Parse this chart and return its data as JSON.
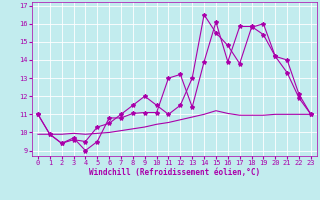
{
  "xlabel": "Windchill (Refroidissement éolien,°C)",
  "xlim": [
    -0.5,
    23.5
  ],
  "ylim": [
    8.7,
    17.2
  ],
  "yticks": [
    9,
    10,
    11,
    12,
    13,
    14,
    15,
    16,
    17
  ],
  "xticks": [
    0,
    1,
    2,
    3,
    4,
    5,
    6,
    7,
    8,
    9,
    10,
    11,
    12,
    13,
    14,
    15,
    16,
    17,
    18,
    19,
    20,
    21,
    22,
    23
  ],
  "background_color": "#c2ecee",
  "grid_color": "#ffffff",
  "line_color": "#aa00aa",
  "line1_x": [
    0,
    1,
    2,
    3,
    4,
    5,
    6,
    7,
    8,
    9,
    10,
    11,
    12,
    13,
    14,
    15,
    16,
    17,
    18,
    19,
    20,
    21,
    22,
    23
  ],
  "line1_y": [
    11.0,
    9.9,
    9.4,
    9.7,
    9.0,
    9.5,
    10.8,
    10.8,
    11.05,
    11.1,
    11.1,
    13.0,
    13.2,
    11.4,
    13.9,
    16.1,
    13.9,
    15.85,
    15.85,
    15.4,
    14.2,
    13.3,
    11.9,
    11.0
  ],
  "line2_x": [
    0,
    1,
    2,
    3,
    4,
    5,
    6,
    7,
    8,
    9,
    10,
    11,
    12,
    13,
    14,
    15,
    16,
    17,
    18,
    19,
    20,
    21,
    22,
    23
  ],
  "line2_y": [
    11.0,
    9.9,
    9.4,
    9.6,
    9.5,
    10.3,
    10.5,
    11.0,
    11.5,
    12.0,
    11.5,
    11.0,
    11.5,
    13.0,
    16.5,
    15.5,
    14.8,
    13.8,
    15.8,
    16.0,
    14.2,
    14.0,
    12.1,
    11.0
  ],
  "line3_x": [
    0,
    1,
    2,
    3,
    4,
    5,
    6,
    7,
    8,
    9,
    10,
    11,
    12,
    13,
    14,
    15,
    16,
    17,
    18,
    19,
    20,
    21,
    22,
    23
  ],
  "line3_y": [
    9.9,
    9.9,
    9.9,
    9.95,
    9.9,
    9.95,
    10.0,
    10.1,
    10.2,
    10.3,
    10.45,
    10.55,
    10.7,
    10.85,
    11.0,
    11.2,
    11.05,
    10.95,
    10.95,
    10.95,
    11.0,
    11.0,
    11.0,
    11.0
  ],
  "marker": "*",
  "markersize": 3,
  "linewidth": 0.8,
  "tick_fontsize": 5,
  "xlabel_fontsize": 5.5
}
